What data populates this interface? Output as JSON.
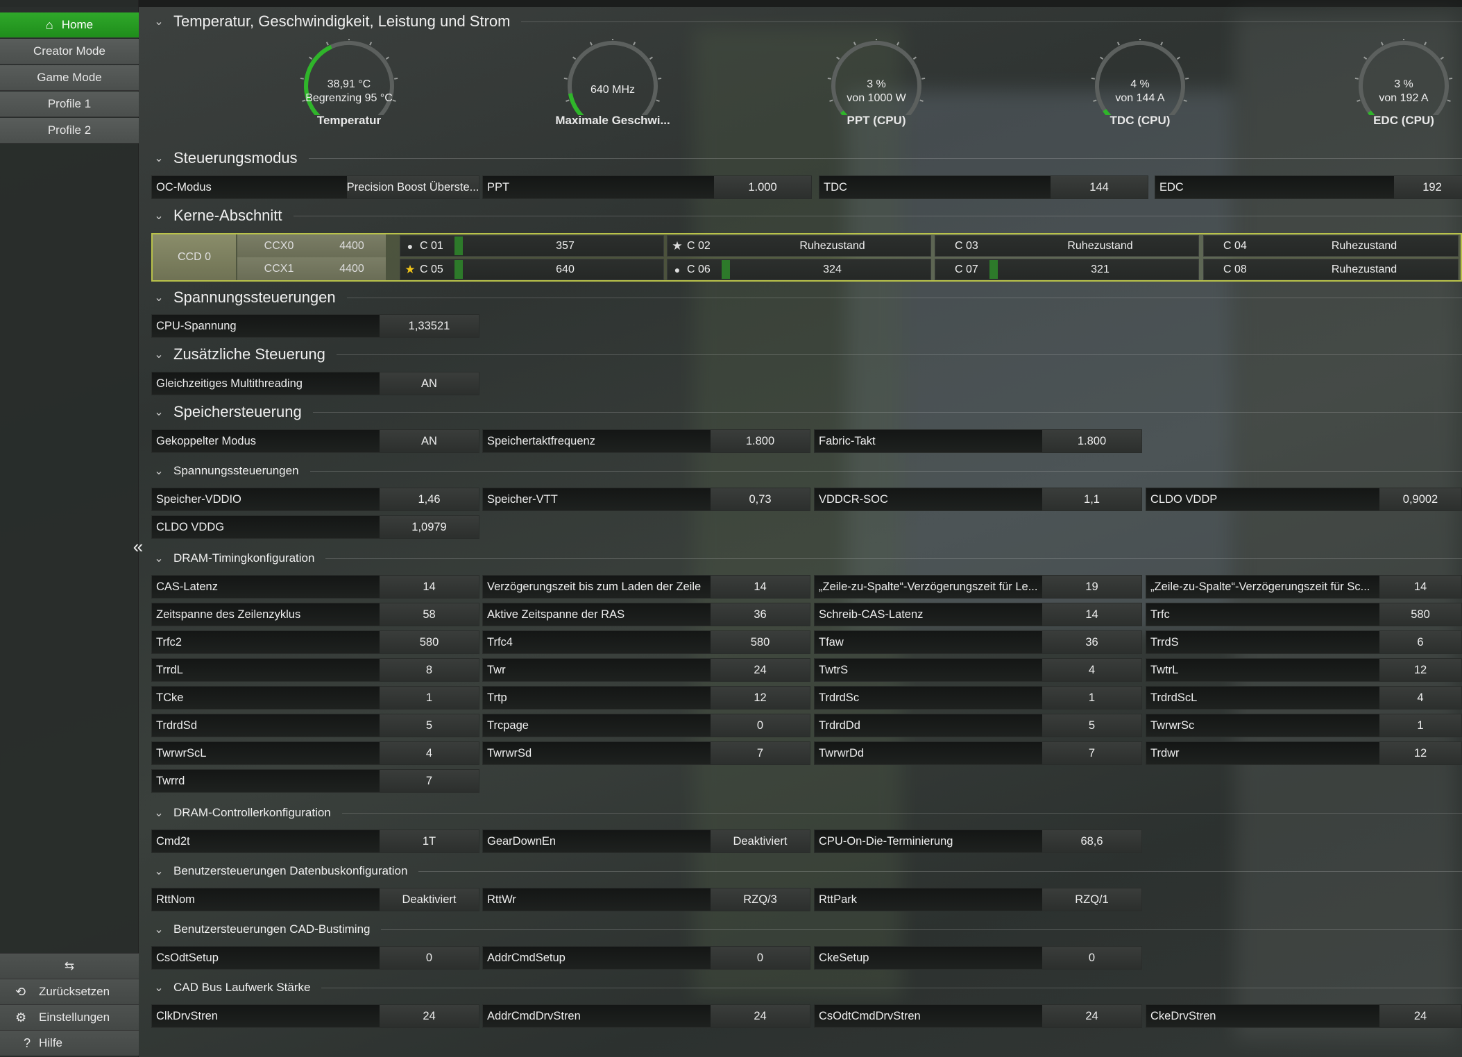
{
  "sidebar": {
    "nav": [
      {
        "label": "Home",
        "active": true
      },
      {
        "label": "Creator Mode"
      },
      {
        "label": "Game Mode"
      },
      {
        "label": "Profile 1"
      },
      {
        "label": "Profile 2"
      }
    ],
    "bottom": [
      {
        "label": "Zurücksetzen"
      },
      {
        "label": "Einstellungen"
      },
      {
        "label": "Hilfe"
      }
    ]
  },
  "sections": {
    "temp": "Temperatur, Geschwindigkeit, Leistung und Strom",
    "steuerung": "Steuerungsmodus",
    "kerne": "Kerne-Abschnitt",
    "spannung": "Spannungssteuerungen",
    "zusatz": "Zusätzliche Steuerung",
    "speicher": "Speichersteuerung",
    "spannung2": "Spannungssteuerungen",
    "dram_timing": "DRAM-Timingkonfiguration",
    "dram_ctrl": "DRAM-Controllerkonfiguration",
    "datenbus": "Benutzersteuerungen Datenbuskonfiguration",
    "cad": "Benutzersteuerungen CAD-Bustiming",
    "cad_drive": "CAD Bus Laufwerk Stärke"
  },
  "gauges": [
    {
      "l1": "38,91 °C",
      "l2": "Begrenzing  95 °C",
      "label": "Temperatur",
      "fill": 0.41
    },
    {
      "l1": "640  MHz",
      "l2": "",
      "label": "Maximale Geschwi...",
      "fill": 0.13
    },
    {
      "l1": "3 %",
      "l2": "von  1000 W",
      "label": "PPT (CPU)",
      "fill": 0.03
    },
    {
      "l1": "4 %",
      "l2": "von  144 A",
      "label": "TDC (CPU)",
      "fill": 0.04
    },
    {
      "l1": "3 %",
      "l2": "von  192 A",
      "label": "EDC (CPU)",
      "fill": 0.03
    }
  ],
  "control": [
    {
      "label": "OC-Modus",
      "value": "Precision Boost Überste..."
    },
    {
      "label": "PPT",
      "value": "1.000"
    },
    {
      "label": "TDC",
      "value": "144"
    },
    {
      "label": "EDC",
      "value": "192"
    }
  ],
  "cores": {
    "ccd": "CCD 0",
    "ccx": [
      {
        "name": "CCX0",
        "freq": "4400"
      },
      {
        "name": "CCX1",
        "freq": "4400"
      }
    ],
    "rows": [
      [
        {
          "marker": "dot",
          "name": "C 01",
          "value": "357",
          "bar": true
        },
        {
          "marker": "star-white",
          "name": "C 02",
          "value": "Ruhezustand",
          "bar": false
        },
        {
          "marker": "none",
          "name": "C 03",
          "value": "Ruhezustand",
          "bar": false
        },
        {
          "marker": "none",
          "name": "C 04",
          "value": "Ruhezustand",
          "bar": false
        }
      ],
      [
        {
          "marker": "star-gold",
          "name": "C 05",
          "value": "640",
          "bar": true
        },
        {
          "marker": "dot",
          "name": "C 06",
          "value": "324",
          "bar": true
        },
        {
          "marker": "none",
          "name": "C 07",
          "value": "321",
          "bar": true
        },
        {
          "marker": "none",
          "name": "C 08",
          "value": "Ruhezustand",
          "bar": false
        }
      ]
    ]
  },
  "voltage": [
    {
      "label": "CPU-Spannung",
      "value": "1,33521"
    }
  ],
  "extra": [
    {
      "label": "Gleichzeitiges Multithreading",
      "value": "AN"
    }
  ],
  "memory": [
    {
      "label": "Gekoppelter Modus",
      "value": "AN"
    },
    {
      "label": "Speichertaktfrequenz",
      "value": "1.800"
    },
    {
      "label": "Fabric-Takt",
      "value": "1.800"
    }
  ],
  "mem_voltage": [
    {
      "label": "Speicher-VDDIO",
      "value": "1,46"
    },
    {
      "label": "Speicher-VTT",
      "value": "0,73"
    },
    {
      "label": "VDDCR-SOC",
      "value": "1,1"
    },
    {
      "label": "CLDO VDDP",
      "value": "0,9002"
    },
    {
      "label": "CLDO VDDG",
      "value": "1,0979"
    }
  ],
  "timings": [
    {
      "label": "CAS-Latenz",
      "value": "14"
    },
    {
      "label": "Verzögerungszeit bis zum Laden der Zeile",
      "value": "14"
    },
    {
      "label": "„Zeile-zu-Spalte“-Verzögerungszeit für Le...",
      "value": "19"
    },
    {
      "label": "„Zeile-zu-Spalte“-Verzögerungszeit für Sc...",
      "value": "14"
    },
    {
      "label": "Zeitspanne des Zeilenzyklus",
      "value": "58"
    },
    {
      "label": "Aktive Zeitspanne der RAS",
      "value": "36"
    },
    {
      "label": "Schreib-CAS-Latenz",
      "value": "14"
    },
    {
      "label": "Trfc",
      "value": "580"
    },
    {
      "label": "Trfc2",
      "value": "580"
    },
    {
      "label": "Trfc4",
      "value": "580"
    },
    {
      "label": "Tfaw",
      "value": "36"
    },
    {
      "label": "TrrdS",
      "value": "6"
    },
    {
      "label": "TrrdL",
      "value": "8"
    },
    {
      "label": "Twr",
      "value": "24"
    },
    {
      "label": "TwtrS",
      "value": "4"
    },
    {
      "label": "TwtrL",
      "value": "12"
    },
    {
      "label": "TCke",
      "value": "1"
    },
    {
      "label": "Trtp",
      "value": "12"
    },
    {
      "label": "TrdrdSc",
      "value": "1"
    },
    {
      "label": "TrdrdScL",
      "value": "4"
    },
    {
      "label": "TrdrdSd",
      "value": "5"
    },
    {
      "label": "Trcpage",
      "value": "0"
    },
    {
      "label": "TrdrdDd",
      "value": "5"
    },
    {
      "label": "TwrwrSc",
      "value": "1"
    },
    {
      "label": "TwrwrScL",
      "value": "4"
    },
    {
      "label": "TwrwrSd",
      "value": "7"
    },
    {
      "label": "TwrwrDd",
      "value": "7"
    },
    {
      "label": "Trdwr",
      "value": "12"
    },
    {
      "label": "Twrrd",
      "value": "7"
    }
  ],
  "dram_ctrl": [
    {
      "label": "Cmd2t",
      "value": "1T"
    },
    {
      "label": "GearDownEn",
      "value": "Deaktiviert"
    },
    {
      "label": "CPU-On-Die-Terminierung",
      "value": "68,6"
    }
  ],
  "datenbus": [
    {
      "label": "RttNom",
      "value": "Deaktiviert"
    },
    {
      "label": "RttWr",
      "value": "RZQ/3"
    },
    {
      "label": "RttPark",
      "value": "RZQ/1"
    }
  ],
  "cad": [
    {
      "label": "CsOdtSetup",
      "value": "0"
    },
    {
      "label": "AddrCmdSetup",
      "value": "0"
    },
    {
      "label": "CkeSetup",
      "value": "0"
    }
  ],
  "cad_drive": [
    {
      "label": "ClkDrvStren",
      "value": "24"
    },
    {
      "label": "AddrCmdDrvStren",
      "value": "24"
    },
    {
      "label": "CsOdtCmdDrvStren",
      "value": "24"
    },
    {
      "label": "CkeDrvStren",
      "value": "24"
    }
  ]
}
